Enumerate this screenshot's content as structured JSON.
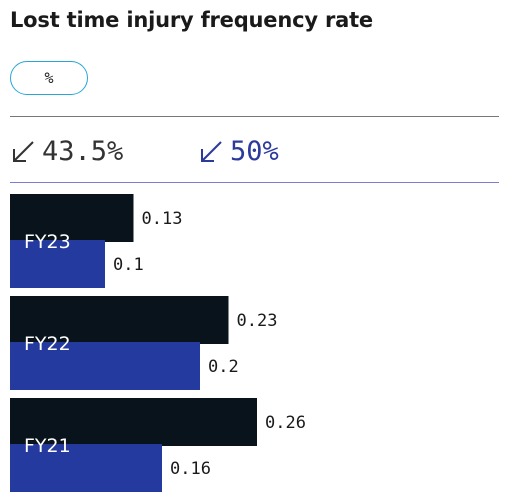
{
  "title": "Lost time injury frequency rate",
  "unit_toggle": {
    "label": "%"
  },
  "kpis": [
    {
      "value": "43.5%",
      "direction": "down",
      "color": "#333333"
    },
    {
      "value": "50%",
      "direction": "down",
      "color": "#2b3a9c"
    }
  ],
  "colors": {
    "series_dark": "#08131b",
    "series_blue": "#243a9e",
    "accent_border": "#2aa6d6"
  },
  "chart_data": {
    "type": "bar",
    "orientation": "horizontal",
    "categories": [
      "FY23",
      "FY22",
      "FY21"
    ],
    "series": [
      {
        "values": [
          0.13,
          0.23,
          0.26
        ],
        "labels": [
          "0.13",
          "0.23",
          "0.26"
        ],
        "color": "#08131b"
      },
      {
        "values": [
          0.1,
          0.2,
          0.16
        ],
        "labels": [
          "0.1",
          "0.2",
          "0.16"
        ],
        "color": "#243a9e"
      }
    ],
    "xlim": [
      0,
      0.26
    ],
    "grid": false,
    "legend": "none"
  }
}
